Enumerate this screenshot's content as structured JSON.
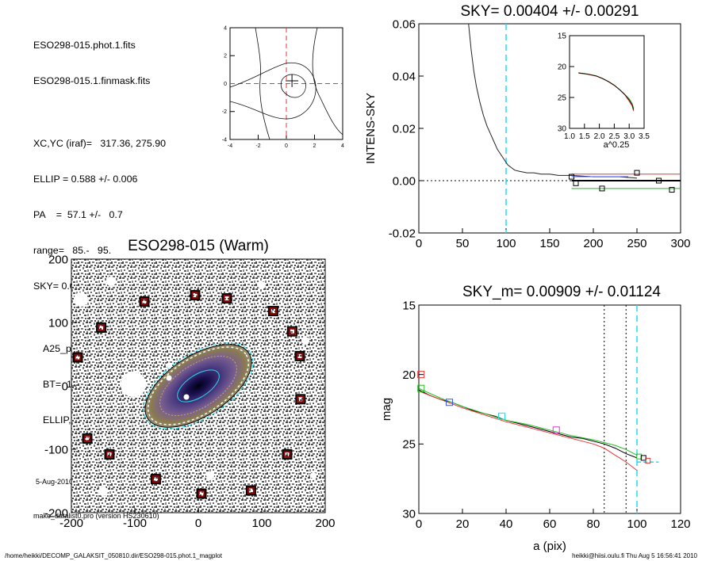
{
  "info": {
    "line1": "ESO298-015.phot.1.fits",
    "line2": "ESO298-015.1.finmask.fits",
    "line3": "XC,YC (iraf)=   317.36, 275.90",
    "line4": "ELLIP = 0.588 +/- 0.006",
    "line5": "PA    =  57.1 +/-   0.7",
    "line6": "range=   85.-   95.",
    "line7": "SKY= 0.00404 +/- 0.00291",
    "line8": "A25_pix= 82.6   T= 6.1  B",
    "line9": "BT=  14.26   MABS=-17.74",
    "line10": "ELLIP, PA= 0.636   59.7",
    "date": "5-Aug-2010 16:56:41.00",
    "program": "make_datalist0.pro (version HS230610)"
  },
  "footer": {
    "left": "/home/heikki/DECOMP_GALAKSIT_050810.dir/ESO298-015.phot.1_magplot",
    "right": "heikki@hiisi.oulu.fi  Thu Aug  5 16:56:41 2010"
  },
  "colors": {
    "cyan": "#22ddee",
    "red": "#ee3333",
    "green": "#22bb22",
    "blue": "#3355ff",
    "magenta": "#dd33cc",
    "dark_red": "#8b0000"
  },
  "chart_data": [
    {
      "id": "contour",
      "type": "contour",
      "xlim": [
        -4,
        4
      ],
      "ylim": [
        -4,
        4
      ],
      "xticks": [
        "-4",
        "-2",
        "0",
        "2",
        "4"
      ],
      "yticks": [
        "-4",
        "-2",
        "0",
        "2",
        "4"
      ]
    },
    {
      "id": "sky",
      "type": "line",
      "title": "SKY= 0.00404 +/- 0.00291",
      "ylabel": "INTENS-SKY",
      "xlim": [
        0,
        300
      ],
      "ylim": [
        -0.02,
        0.06
      ],
      "xticks": [
        "0",
        "50",
        "100",
        "150",
        "200",
        "250",
        "300"
      ],
      "yticks": [
        "-0.02",
        "0.00",
        "0.02",
        "0.04",
        "0.06"
      ],
      "profile": {
        "x": [
          57,
          60,
          63,
          66,
          70,
          74,
          78,
          82,
          86,
          90,
          94,
          98,
          102,
          106,
          110,
          116,
          124,
          132,
          140,
          150,
          160,
          175,
          200,
          230,
          250
        ],
        "y": [
          0.06,
          0.05,
          0.042,
          0.036,
          0.03,
          0.025,
          0.021,
          0.018,
          0.015,
          0.012,
          0.01,
          0.008,
          0.006,
          0.005,
          0.004,
          0.0035,
          0.003,
          0.003,
          0.0025,
          0.0025,
          0.002,
          0.002,
          0.0015,
          0.0015,
          0.001
        ]
      },
      "sky_levels": [
        {
          "name": "red",
          "x": [
            175,
            300
          ],
          "y": 0.0025,
          "markers": [
            [
              180,
              -0.001
            ],
            [
              250,
              0.003
            ]
          ]
        },
        {
          "name": "black",
          "x": [
            175,
            300
          ],
          "y": 0.0,
          "markers": [
            [
              175,
              0.0015
            ],
            [
              275,
              0.0
            ]
          ]
        },
        {
          "name": "green",
          "x": [
            175,
            300
          ],
          "y": -0.003,
          "markers": [
            [
              210,
              -0.003
            ],
            [
              290,
              -0.0035
            ]
          ]
        },
        {
          "name": "blue",
          "x": [
            175,
            240
          ],
          "y": 0.0015,
          "markers": []
        }
      ],
      "vline": 100,
      "inset": {
        "xlabel": "a^0.25",
        "xlim": [
          1.0,
          3.5
        ],
        "ylim": [
          15,
          30
        ],
        "xticks": [
          "1.0",
          "1.5",
          "2.0",
          "2.5",
          "3.0",
          "3.5"
        ],
        "yticks": [
          "15",
          "20",
          "25",
          "30"
        ],
        "x": [
          1.3,
          1.6,
          1.9,
          2.1,
          2.3,
          2.5,
          2.7,
          2.85,
          3.0,
          3.1,
          3.15
        ],
        "y": [
          21.0,
          21.2,
          21.5,
          21.9,
          22.4,
          23.0,
          23.8,
          24.5,
          25.2,
          26.0,
          26.8
        ]
      }
    },
    {
      "id": "image",
      "type": "image",
      "title": "ESO298-015 (Warm)",
      "xlim": [
        -200,
        200
      ],
      "ylim": [
        -200,
        200
      ],
      "xticks": [
        "-200",
        "-100",
        "0",
        "100",
        "200"
      ],
      "yticks": [
        "-200",
        "-100",
        "0",
        "100",
        "200"
      ],
      "masks": [
        [
          -85,
          133
        ],
        [
          -5,
          143
        ],
        [
          45,
          138
        ],
        [
          -153,
          92
        ],
        [
          118,
          118
        ],
        [
          148,
          86
        ],
        [
          -190,
          45
        ],
        [
          160,
          47
        ],
        [
          -208,
          -27
        ],
        [
          161,
          -21
        ],
        [
          -175,
          -83
        ],
        [
          -140,
          -108
        ],
        [
          140,
          -108
        ],
        [
          -67,
          -147
        ],
        [
          5,
          -170
        ],
        [
          83,
          -165
        ]
      ]
    },
    {
      "id": "mag",
      "type": "line",
      "title": "SKY_m=  0.00909 +/- 0.01124",
      "xlabel": "a (pix)",
      "ylabel": "mag",
      "xlim": [
        0,
        120
      ],
      "ylim": [
        30,
        15
      ],
      "xticks": [
        "0",
        "20",
        "40",
        "60",
        "80",
        "100",
        "120"
      ],
      "yticks": [
        "15",
        "20",
        "25",
        "30"
      ],
      "series": [
        {
          "name": "black",
          "x": [
            0,
            5,
            10,
            15,
            20,
            25,
            30,
            35,
            40,
            45,
            50,
            55,
            60,
            65,
            70,
            75,
            80,
            85,
            90,
            95,
            100
          ],
          "y": [
            21.1,
            21.5,
            21.8,
            22.0,
            22.3,
            22.6,
            22.8,
            23.0,
            23.3,
            23.5,
            23.7,
            23.9,
            24.1,
            24.3,
            24.5,
            24.6,
            24.8,
            25.0,
            25.3,
            25.7,
            26.0
          ]
        },
        {
          "name": "red",
          "x": [
            0,
            10,
            20,
            30,
            40,
            50,
            60,
            70,
            80,
            85,
            90,
            95,
            100
          ],
          "y": [
            21.2,
            21.8,
            22.4,
            22.9,
            23.4,
            23.8,
            24.2,
            24.6,
            25.0,
            25.3,
            25.8,
            26.3,
            26.9
          ]
        },
        {
          "name": "green",
          "x": [
            0,
            10,
            20,
            30,
            40,
            50,
            60,
            70,
            80,
            85,
            90,
            95,
            100
          ],
          "y": [
            21.0,
            21.7,
            22.3,
            22.8,
            23.3,
            23.6,
            24.0,
            24.4,
            24.7,
            24.9,
            25.1,
            25.4,
            25.8
          ]
        }
      ],
      "markers": [
        {
          "color": "red",
          "x": 1,
          "y": 20.0
        },
        {
          "color": "green",
          "x": 1,
          "y": 21.0
        },
        {
          "color": "blue",
          "x": 14,
          "y": 22.0
        },
        {
          "color": "cyan",
          "x": 38,
          "y": 23.0
        },
        {
          "color": "magenta",
          "x": 63,
          "y": 24.0
        }
      ],
      "vlines_dotted": [
        85,
        95
      ],
      "vline_cyan": 100
    }
  ]
}
